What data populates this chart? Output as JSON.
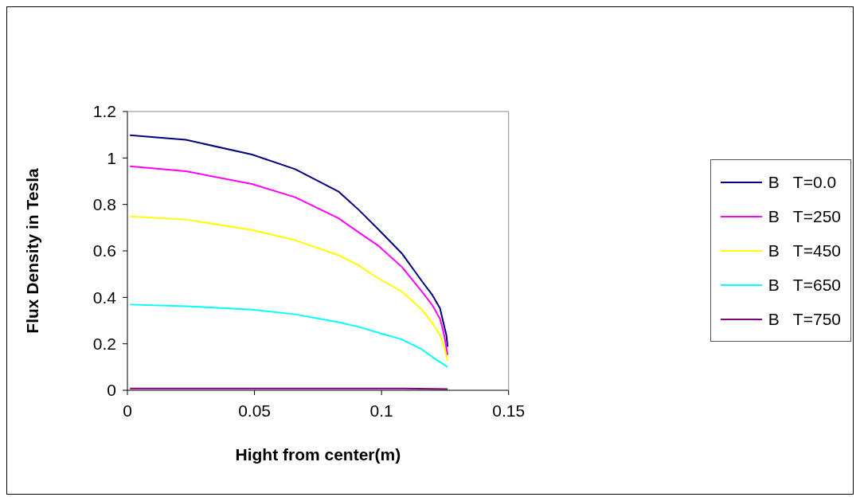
{
  "chart_data": {
    "type": "line",
    "xlabel": "Hight from center(m)",
    "ylabel": "Flux Density in Tesla",
    "xlim": [
      0,
      0.15
    ],
    "xticks": [
      0,
      0.05,
      0.1,
      0.15
    ],
    "ylim": [
      0,
      1.2
    ],
    "yticks": [
      0,
      0.2,
      0.4,
      0.6,
      0.8,
      1,
      1.2
    ],
    "legend": "right",
    "marker": "none",
    "line_style": "solid",
    "series": [
      {
        "name": "B   T=0.0",
        "color": "#000080",
        "x": [
          0.001,
          0.023,
          0.049,
          0.066,
          0.083,
          0.091,
          0.099,
          0.108,
          0.116,
          0.12,
          0.123,
          0.1245,
          0.1255,
          0.126
        ],
        "values": [
          1.098,
          1.078,
          1.015,
          0.952,
          0.856,
          0.777,
          0.69,
          0.589,
          0.468,
          0.41,
          0.353,
          0.283,
          0.238,
          0.187
        ]
      },
      {
        "name": "B   T=250",
        "color": "#ff00ff",
        "x": [
          0.001,
          0.023,
          0.049,
          0.066,
          0.083,
          0.091,
          0.099,
          0.108,
          0.116,
          0.12,
          0.123,
          0.1245,
          0.126
        ],
        "values": [
          0.964,
          0.943,
          0.888,
          0.831,
          0.741,
          0.68,
          0.62,
          0.531,
          0.423,
          0.366,
          0.308,
          0.245,
          0.152
        ]
      },
      {
        "name": "B   T=450",
        "color": "#ffff00",
        "x": [
          0.001,
          0.023,
          0.049,
          0.066,
          0.083,
          0.091,
          0.099,
          0.108,
          0.116,
          0.12,
          0.123,
          0.1245,
          0.126
        ],
        "values": [
          0.748,
          0.735,
          0.69,
          0.646,
          0.582,
          0.538,
          0.48,
          0.425,
          0.346,
          0.289,
          0.238,
          0.194,
          0.127
        ]
      },
      {
        "name": "B   T=650",
        "color": "#00ffff",
        "x": [
          0.001,
          0.023,
          0.049,
          0.066,
          0.083,
          0.091,
          0.099,
          0.108,
          0.116,
          0.12,
          0.126
        ],
        "values": [
          0.369,
          0.362,
          0.347,
          0.327,
          0.293,
          0.273,
          0.247,
          0.219,
          0.175,
          0.143,
          0.101
        ]
      },
      {
        "name": "B   T=750",
        "color": "#800080",
        "x": [
          0.001,
          0.107,
          0.126
        ],
        "values": [
          0.008,
          0.008,
          0.005
        ]
      }
    ]
  }
}
